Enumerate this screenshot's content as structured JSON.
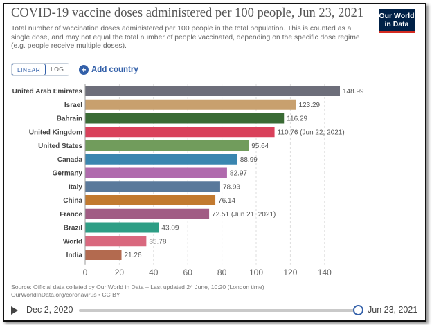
{
  "header": {
    "title": "COVID-19 vaccine doses administered per 100 people, Jun 23, 2021",
    "subtitle": "Total number of vaccination doses administered per 100 people in the total population. This is counted as a single dose, and may not equal the total number of people vaccinated, depending on the specific dose regime (e.g. people receive multiple doses).",
    "logo_line1": "Our World",
    "logo_line2": "in Data"
  },
  "controls": {
    "linear_label": "LINEAR",
    "log_label": "LOG",
    "add_country_label": "Add country"
  },
  "chart_data": {
    "type": "bar",
    "orientation": "horizontal",
    "title": "COVID-19 vaccine doses administered per 100 people, Jun 23, 2021",
    "xlabel": "",
    "ylabel": "",
    "xlim": [
      0,
      150
    ],
    "ticks": [
      0,
      20,
      40,
      60,
      80,
      100,
      120,
      140
    ],
    "grid": true,
    "categories": [
      "United Arab Emirates",
      "Israel",
      "Bahrain",
      "United Kingdom",
      "United States",
      "Canada",
      "Germany",
      "Italy",
      "China",
      "France",
      "Brazil",
      "World",
      "India"
    ],
    "values": [
      148.99,
      123.29,
      116.29,
      110.76,
      95.64,
      88.99,
      82.97,
      78.93,
      76.14,
      72.51,
      43.09,
      35.78,
      21.26
    ],
    "labels": [
      "148.99",
      "123.29",
      "116.29",
      "110.76 (Jun 22, 2021)",
      "95.64",
      "88.99",
      "82.97",
      "78.93",
      "76.14",
      "72.51 (Jun 21, 2021)",
      "43.09",
      "35.78",
      "21.26"
    ],
    "colors": [
      "#6d6e7a",
      "#c8a06e",
      "#3a6b35",
      "#d9405a",
      "#719c5c",
      "#3a86b0",
      "#b06aad",
      "#59799b",
      "#c27a2f",
      "#a15c84",
      "#2e9e85",
      "#d9687e",
      "#b36a4f"
    ]
  },
  "footer": {
    "source_line1": "Source: Official data collated by Our World in Data – Last updated 24 June, 10:20 (London time)",
    "source_line2": "OurWorldInData.org/coronavirus • CC BY"
  },
  "timeline": {
    "start_date": "Dec 2, 2020",
    "end_date": "Jun 23, 2021"
  }
}
